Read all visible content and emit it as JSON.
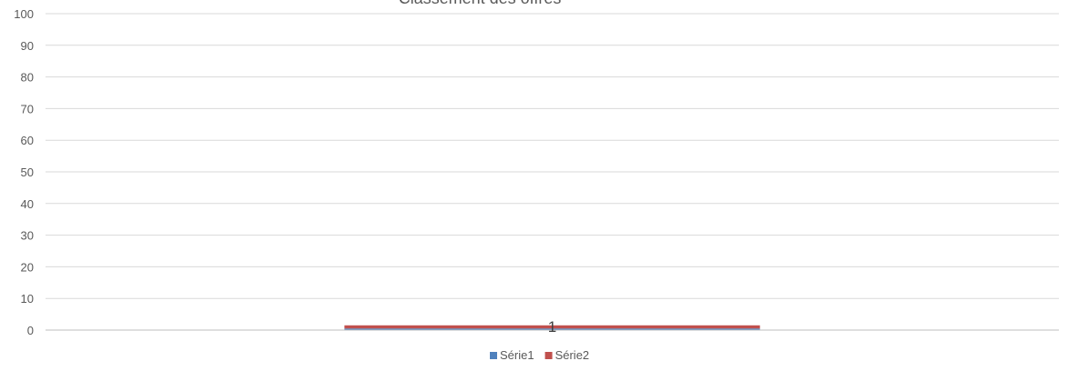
{
  "chart_data": {
    "type": "bar",
    "stacked": true,
    "title": "Classement des offres",
    "xlabel": "",
    "ylabel": "",
    "categories": [
      "1"
    ],
    "series": [
      {
        "name": "Série1",
        "values": [
          0.5
        ],
        "color": "#4f81bd"
      },
      {
        "name": "Série2",
        "values": [
          1
        ],
        "color": "#c0504d"
      }
    ],
    "ylim": [
      0,
      100
    ],
    "yticks": [
      0,
      10,
      20,
      30,
      40,
      50,
      60,
      70,
      80,
      90,
      100
    ],
    "grid": true,
    "legend_position": "bottom"
  }
}
